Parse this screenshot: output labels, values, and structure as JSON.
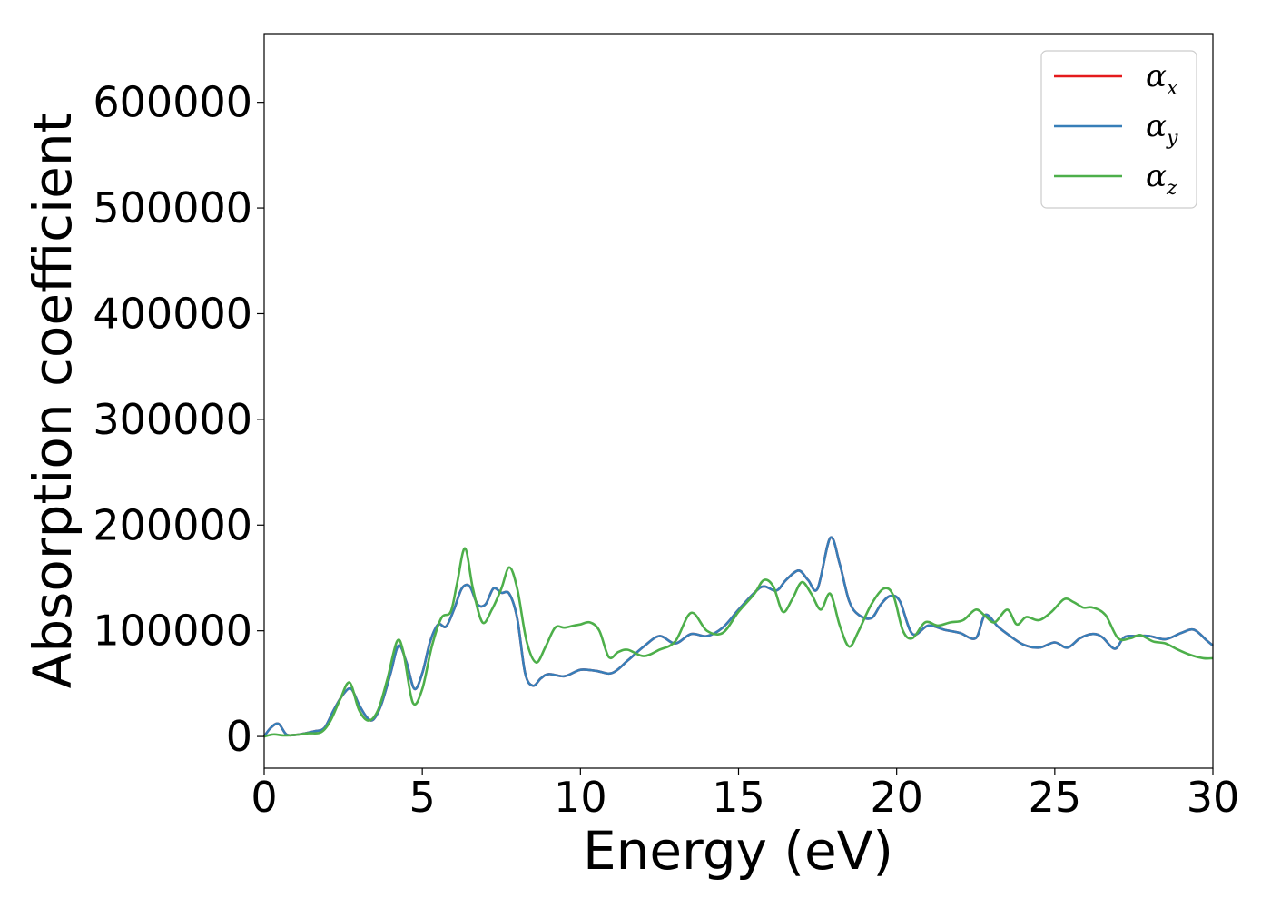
{
  "chart_data": {
    "type": "line",
    "title": "",
    "xlabel": "Energy (eV)",
    "ylabel": "Absorption coefficient",
    "xlim": [
      0,
      30
    ],
    "ylim": [
      -30000,
      665000
    ],
    "xticks": [
      0,
      5,
      10,
      15,
      20,
      25,
      30
    ],
    "xtick_labels": [
      "0",
      "5",
      "10",
      "15",
      "20",
      "25",
      "30"
    ],
    "yticks": [
      0,
      100000,
      200000,
      300000,
      400000,
      500000,
      600000
    ],
    "ytick_labels": [
      "0",
      "100000",
      "200000",
      "300000",
      "400000",
      "500000",
      "600000"
    ],
    "grid": false,
    "legend_position": "top-right",
    "series": [
      {
        "name": "α_x",
        "legend_symbol": "α",
        "legend_sub": "x",
        "color": "#e41a1c",
        "x": [
          0,
          0.2,
          0.45,
          0.7,
          1.0,
          1.3,
          1.6,
          1.9,
          2.2,
          2.5,
          2.75,
          3.0,
          3.25,
          3.45,
          3.7,
          4.0,
          4.25,
          4.5,
          4.75,
          5.0,
          5.25,
          5.5,
          5.75,
          6.0,
          6.25,
          6.5,
          6.75,
          7.0,
          7.25,
          7.5,
          7.75,
          8.0,
          8.25,
          8.5,
          8.75,
          9.0,
          9.5,
          10.0,
          10.5,
          11.0,
          11.5,
          12.0,
          12.5,
          13.0,
          13.5,
          14.0,
          14.5,
          15.0,
          15.5,
          15.8,
          16.2,
          16.5,
          16.9,
          17.2,
          17.5,
          17.9,
          18.2,
          18.5,
          18.8,
          19.2,
          19.5,
          19.8,
          20.1,
          20.5,
          21.0,
          21.5,
          22.0,
          22.5,
          22.8,
          23.2,
          23.5,
          24.0,
          24.5,
          25.0,
          25.4,
          25.8,
          26.2,
          26.5,
          26.9,
          27.2,
          27.6,
          28.0,
          28.5,
          29.0,
          29.4,
          29.8,
          30.0
        ],
        "y": [
          0,
          8000,
          12000,
          2000,
          1500,
          3000,
          5000,
          8000,
          25000,
          40000,
          45000,
          30000,
          18000,
          16000,
          30000,
          60000,
          86000,
          70000,
          45000,
          60000,
          90000,
          106000,
          104000,
          120000,
          140000,
          142000,
          125000,
          125000,
          140000,
          136000,
          135000,
          112000,
          60000,
          48000,
          55000,
          59000,
          57000,
          63000,
          62000,
          60000,
          72000,
          85000,
          95000,
          88000,
          97000,
          95000,
          103000,
          120000,
          136000,
          142000,
          138000,
          148000,
          157000,
          148000,
          140000,
          188000,
          163000,
          128000,
          115000,
          112000,
          125000,
          133000,
          128000,
          97000,
          105000,
          101000,
          98000,
          93000,
          115000,
          104000,
          97000,
          87000,
          84000,
          89000,
          84000,
          93000,
          97000,
          94000,
          83000,
          94000,
          95000,
          95000,
          92000,
          98000,
          101000,
          91000,
          86000
        ]
      },
      {
        "name": "α_y",
        "legend_symbol": "α",
        "legend_sub": "y",
        "color": "#377eb8",
        "x": [
          0,
          0.2,
          0.45,
          0.7,
          1.0,
          1.3,
          1.6,
          1.9,
          2.2,
          2.5,
          2.75,
          3.0,
          3.25,
          3.45,
          3.7,
          4.0,
          4.25,
          4.5,
          4.75,
          5.0,
          5.25,
          5.5,
          5.75,
          6.0,
          6.25,
          6.5,
          6.75,
          7.0,
          7.25,
          7.5,
          7.75,
          8.0,
          8.25,
          8.5,
          8.75,
          9.0,
          9.5,
          10.0,
          10.5,
          11.0,
          11.5,
          12.0,
          12.5,
          13.0,
          13.5,
          14.0,
          14.5,
          15.0,
          15.5,
          15.8,
          16.2,
          16.5,
          16.9,
          17.2,
          17.5,
          17.9,
          18.2,
          18.5,
          18.8,
          19.2,
          19.5,
          19.8,
          20.1,
          20.5,
          21.0,
          21.5,
          22.0,
          22.5,
          22.8,
          23.2,
          23.5,
          24.0,
          24.5,
          25.0,
          25.4,
          25.8,
          26.2,
          26.5,
          26.9,
          27.2,
          27.6,
          28.0,
          28.5,
          29.0,
          29.4,
          29.8,
          30.0
        ],
        "y": [
          0,
          8000,
          12000,
          2000,
          1500,
          3000,
          5000,
          8000,
          25000,
          40000,
          45000,
          30000,
          18000,
          16000,
          30000,
          60000,
          86000,
          70000,
          45000,
          60000,
          90000,
          106000,
          104000,
          120000,
          140000,
          142000,
          125000,
          125000,
          140000,
          136000,
          135000,
          112000,
          60000,
          48000,
          55000,
          59000,
          57000,
          63000,
          62000,
          60000,
          72000,
          85000,
          95000,
          88000,
          97000,
          95000,
          103000,
          120000,
          136000,
          142000,
          138000,
          148000,
          157000,
          148000,
          140000,
          188000,
          163000,
          128000,
          115000,
          112000,
          125000,
          133000,
          128000,
          97000,
          105000,
          101000,
          98000,
          93000,
          115000,
          104000,
          97000,
          87000,
          84000,
          89000,
          84000,
          93000,
          97000,
          94000,
          83000,
          94000,
          95000,
          95000,
          92000,
          98000,
          101000,
          91000,
          86000
        ]
      },
      {
        "name": "α_z",
        "legend_symbol": "α",
        "legend_sub": "z",
        "color": "#4daf4a",
        "x": [
          0,
          0.3,
          0.6,
          1.0,
          1.4,
          1.8,
          2.1,
          2.4,
          2.7,
          3.0,
          3.3,
          3.6,
          3.9,
          4.2,
          4.4,
          4.7,
          5.0,
          5.3,
          5.6,
          5.9,
          6.1,
          6.35,
          6.6,
          6.9,
          7.2,
          7.5,
          7.75,
          8.0,
          8.3,
          8.6,
          8.9,
          9.2,
          9.5,
          9.8,
          10.0,
          10.3,
          10.6,
          10.9,
          11.2,
          11.5,
          12.0,
          12.5,
          13.0,
          13.5,
          14.0,
          14.5,
          15.0,
          15.5,
          15.8,
          16.1,
          16.4,
          16.7,
          17.0,
          17.3,
          17.6,
          17.9,
          18.2,
          18.5,
          18.8,
          19.2,
          19.6,
          19.9,
          20.2,
          20.5,
          20.9,
          21.3,
          21.7,
          22.1,
          22.5,
          22.8,
          23.1,
          23.5,
          23.8,
          24.1,
          24.5,
          24.9,
          25.3,
          25.6,
          25.9,
          26.2,
          26.6,
          27.0,
          27.4,
          27.7,
          28.1,
          28.5,
          28.9,
          29.3,
          29.7,
          30.0
        ],
        "y": [
          0,
          2000,
          1000,
          1500,
          3000,
          4000,
          15000,
          35000,
          51000,
          25000,
          15000,
          25000,
          55000,
          90000,
          80000,
          32000,
          45000,
          85000,
          112000,
          118000,
          145000,
          178000,
          140000,
          108000,
          120000,
          140000,
          160000,
          140000,
          90000,
          70000,
          85000,
          103000,
          103000,
          105000,
          106000,
          108000,
          100000,
          75000,
          80000,
          82000,
          76000,
          82000,
          90000,
          117000,
          100000,
          98000,
          118000,
          135000,
          148000,
          142000,
          118000,
          130000,
          146000,
          135000,
          120000,
          135000,
          105000,
          85000,
          100000,
          125000,
          140000,
          133000,
          100000,
          93000,
          108000,
          105000,
          108000,
          110000,
          120000,
          114000,
          108000,
          120000,
          106000,
          113000,
          110000,
          118000,
          130000,
          127000,
          122000,
          122000,
          115000,
          93000,
          93000,
          96000,
          90000,
          88000,
          82000,
          77000,
          74000,
          74000
        ]
      }
    ]
  }
}
